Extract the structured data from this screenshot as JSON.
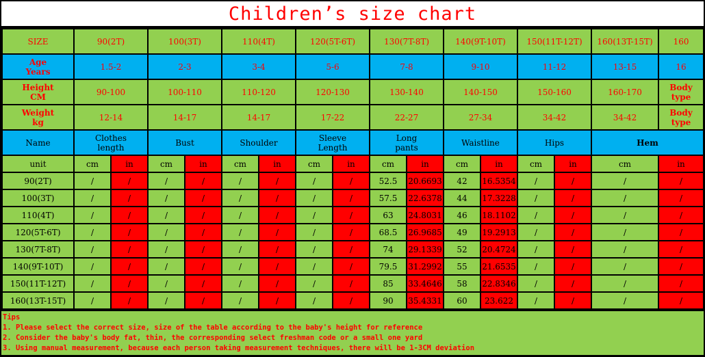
{
  "title": "Children’s size chart",
  "colors": {
    "green": "#92d050",
    "blue": "#00b0f0",
    "red": "#ff0000",
    "text_red": "#ff0000"
  },
  "size_row": {
    "label": "SIZE",
    "sizes": [
      "90(2T)",
      "100(3T)",
      "110(4T)",
      "120(5T-6T)",
      "130(7T-8T)",
      "140(9T-10T)",
      "150(11T-12T)",
      "160(13T-15T)",
      "160"
    ]
  },
  "age_row": {
    "label_line1": "Age",
    "label_line2": "Years",
    "values": [
      "1.5-2",
      "2-3",
      "3-4",
      "5-6",
      "7-8",
      "9-10",
      "11-12",
      "13-15",
      "16"
    ]
  },
  "height_row": {
    "label_line1": "Height",
    "label_line2": "CM",
    "values": [
      "90-100",
      "100-110",
      "110-120",
      "120-130",
      "130-140",
      "140-150",
      "150-160",
      "160-170"
    ],
    "last_line1": "Body",
    "last_line2": "type"
  },
  "weight_row": {
    "label_line1": "Weight",
    "label_line2": "kg",
    "values": [
      "12-14",
      "14-17",
      "14-17",
      "17-22",
      "22-27",
      "27-34",
      "34-42",
      "34-42"
    ],
    "last_line1": "Body",
    "last_line2": "type"
  },
  "measure_headers": {
    "name": "Name",
    "clothes_1": "Clothes",
    "clothes_2": "length",
    "bust": "Bust",
    "shoulder": "Shoulder",
    "sleeve_1": "Sleeve",
    "sleeve_2": "Length",
    "pants_1": "Long",
    "pants_2": "pants",
    "waist": "Waistline",
    "hips": "Hips",
    "hem": "Hem"
  },
  "units": {
    "label": "unit",
    "cm": "cm",
    "in": "in"
  },
  "rows": [
    {
      "size": "90(2T)",
      "pants_cm": "52.5",
      "pants_in": "20.6693",
      "waist_cm": "42",
      "waist_in": "16.5354"
    },
    {
      "size": "100(3T)",
      "pants_cm": "57.5",
      "pants_in": "22.6378",
      "waist_cm": "44",
      "waist_in": "17.3228"
    },
    {
      "size": "110(4T)",
      "pants_cm": "63",
      "pants_in": "24.8031",
      "waist_cm": "46",
      "waist_in": "18.1102"
    },
    {
      "size": "120(5T-6T)",
      "pants_cm": "68.5",
      "pants_in": "26.9685",
      "waist_cm": "49",
      "waist_in": "19.2913"
    },
    {
      "size": "130(7T-8T)",
      "pants_cm": "74",
      "pants_in": "29.1339",
      "waist_cm": "52",
      "waist_in": "20.4724"
    },
    {
      "size": "140(9T-10T)",
      "pants_cm": "79.5",
      "pants_in": "31.2992",
      "waist_cm": "55",
      "waist_in": "21.6535"
    },
    {
      "size": "150(11T-12T)",
      "pants_cm": "85",
      "pants_in": "33.4646",
      "waist_cm": "58",
      "waist_in": "22.8346"
    },
    {
      "size": "160(13T-15T)",
      "pants_cm": "90",
      "pants_in": "35.4331",
      "waist_cm": "60",
      "waist_in": "23.622"
    }
  ],
  "empty_mark": "/",
  "tips": [
    "Tips",
    "1. Please select the correct size, size of the table according to the baby's height for reference",
    "2. Consider the baby's body fat, thin, the corresponding select freshman code or a small one yard",
    "3. Using manual measurement, because each person taking measurement techniques, there will be 1-3CM deviation"
  ]
}
